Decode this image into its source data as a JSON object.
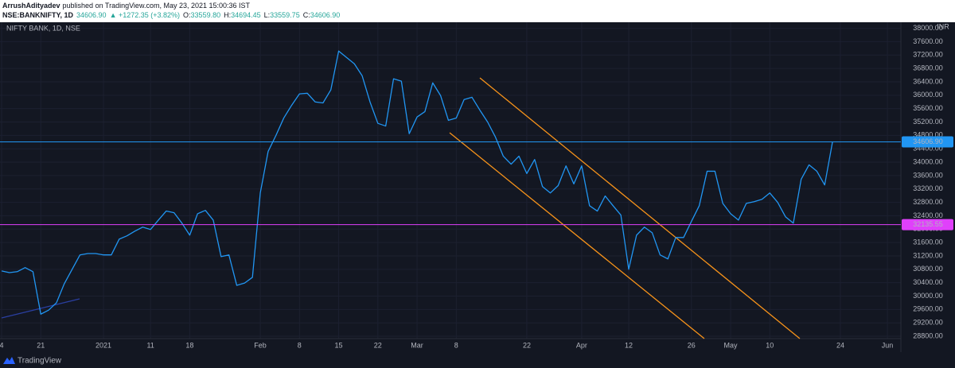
{
  "header": {
    "author": "ArrushAdityadev",
    "published": "published on TradingView.com, May 23, 2021 15:00:36 IST",
    "symbol": "NSE:BANKNIFTY, 1D",
    "last": "34606.90",
    "change": "▲ +1272.35 (+3.82%)",
    "ohlc": [
      {
        "label": "O:",
        "value": "33559.80"
      },
      {
        "label": "H:",
        "value": "34694.45"
      },
      {
        "label": "L:",
        "value": "33559.75"
      },
      {
        "label": "C:",
        "value": "34606.90"
      }
    ]
  },
  "chart_data": {
    "type": "line",
    "subtitle": "NIFTY BANK, 1D, NSE",
    "currency": "INR",
    "color": "#2196f3",
    "grid": true,
    "categories": [
      "4",
      null,
      null,
      null,
      null,
      "21",
      null,
      null,
      null,
      null,
      null,
      null,
      null,
      "2021",
      null,
      null,
      null,
      null,
      null,
      "11",
      null,
      null,
      null,
      null,
      "18",
      null,
      null,
      null,
      null,
      null,
      null,
      null,
      null,
      "Feb",
      null,
      null,
      null,
      null,
      "8",
      null,
      null,
      null,
      null,
      "15",
      null,
      null,
      null,
      null,
      "22",
      null,
      null,
      null,
      null,
      "Mar",
      null,
      null,
      null,
      null,
      "8",
      null,
      null,
      null,
      null,
      null,
      null,
      null,
      null,
      "22",
      null,
      null,
      null,
      null,
      null,
      null,
      "Apr",
      null,
      null,
      null,
      null,
      null,
      "12",
      null,
      null,
      null,
      null,
      null,
      null,
      null,
      "26",
      null,
      null,
      null,
      null,
      "May",
      null,
      null,
      null,
      null,
      "10",
      null,
      null,
      null,
      null,
      null,
      null,
      null,
      null,
      "24",
      null,
      null,
      null,
      null,
      null,
      "Jun"
    ],
    "values": [
      30750,
      30700,
      30730,
      30850,
      30730,
      29460,
      29580,
      29800,
      30370,
      30800,
      31230,
      31270,
      31270,
      31230,
      31230,
      31700,
      31800,
      31940,
      32060,
      31990,
      32270,
      32540,
      32490,
      32180,
      31820,
      32460,
      32560,
      32270,
      31180,
      31230,
      30320,
      30390,
      30560,
      33080,
      34320,
      34800,
      35320,
      35700,
      36040,
      36060,
      35800,
      35770,
      36160,
      37320,
      37130,
      36940,
      36580,
      35800,
      35160,
      35080,
      36490,
      36420,
      34850,
      35350,
      35510,
      36370,
      35990,
      35250,
      35320,
      35870,
      35940,
      35560,
      35200,
      34750,
      34180,
      33940,
      34180,
      33660,
      34080,
      33270,
      33080,
      33300,
      33890,
      33350,
      33890,
      32700,
      32540,
      32990,
      32700,
      32420,
      30800,
      31820,
      32060,
      31890,
      31230,
      31110,
      31750,
      31750,
      32230,
      32700,
      33730,
      33730,
      32770,
      32460,
      32270,
      32770,
      32820,
      32890,
      33080,
      32800,
      32370,
      32180,
      33490,
      33920,
      33730,
      33320,
      34606.9,
      null,
      null,
      null,
      null,
      null,
      null,
      null
    ],
    "ylim": [
      28730,
      38180
    ],
    "yticks": [
      {
        "value": 28800,
        "label": "28800.00"
      },
      {
        "value": 29200,
        "label": "29200.00"
      },
      {
        "value": 29600,
        "label": "29600.00"
      },
      {
        "value": 30000,
        "label": "30000.00"
      },
      {
        "value": 30400,
        "label": "30400.00"
      },
      {
        "value": 30800,
        "label": "30800.00"
      },
      {
        "value": 31200,
        "label": "31200.00"
      },
      {
        "value": 31600,
        "label": "31600.00"
      },
      {
        "value": 32000,
        "label": "32000.00"
      },
      {
        "value": 32400,
        "label": "32400.00"
      },
      {
        "value": 32800,
        "label": "32800.00"
      },
      {
        "value": 33200,
        "label": "33200.00"
      },
      {
        "value": 33600,
        "label": "33600.00"
      },
      {
        "value": 34000,
        "label": "34000.00"
      },
      {
        "value": 34400,
        "label": "34400.00"
      },
      {
        "value": 34800,
        "label": "34800.00"
      },
      {
        "value": 35200,
        "label": "35200.00"
      },
      {
        "value": 35600,
        "label": "35600.00"
      },
      {
        "value": 36000,
        "label": "36000.00"
      },
      {
        "value": 36400,
        "label": "36400.00"
      },
      {
        "value": 36800,
        "label": "36800.00"
      },
      {
        "value": 37200,
        "label": "37200.00"
      },
      {
        "value": 37600,
        "label": "37600.00"
      },
      {
        "value": 38000,
        "label": "38000.00"
      }
    ],
    "price_lines": [
      {
        "value": 34606.9,
        "label": "34606.90",
        "color": "#2196f3"
      },
      {
        "value": 32135.55,
        "label": "32135.55",
        "color": "#e040fb"
      }
    ]
  },
  "footer": {
    "brand": "TradingView"
  }
}
